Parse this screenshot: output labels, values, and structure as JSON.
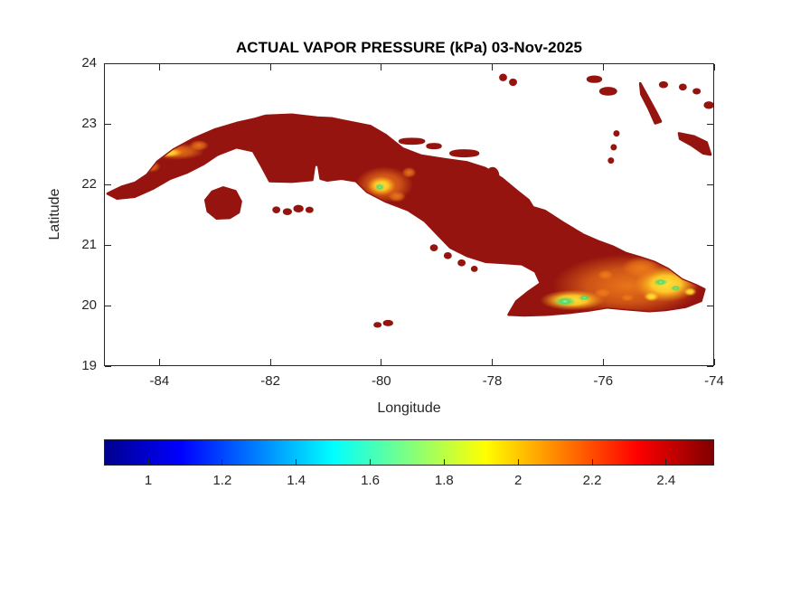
{
  "chart_data": {
    "type": "heatmap",
    "title": "ACTUAL VAPOR PRESSURE (kPa) 03-Nov-2025",
    "variable": "Actual vapor pressure",
    "unit": "kPa",
    "date": "03-Nov-2025",
    "region": "Cuba and nearby cays (Isla de la Juventud, Sabana-Camaguey archipelago, southern Bahamas fragments)",
    "xlabel": "Longitude",
    "ylabel": "Latitude",
    "xlim": [
      -85,
      -74
    ],
    "ylim": [
      19,
      24
    ],
    "grid": false,
    "legend_position": "none",
    "xticks": [
      {
        "value": -84,
        "label": "-84"
      },
      {
        "value": -82,
        "label": "-82"
      },
      {
        "value": -80,
        "label": "-80"
      },
      {
        "value": -78,
        "label": "-78"
      },
      {
        "value": -76,
        "label": "-76"
      },
      {
        "value": -74,
        "label": "-74"
      }
    ],
    "yticks": [
      {
        "value": 24,
        "label": "24"
      },
      {
        "value": 23,
        "label": "23"
      },
      {
        "value": 22,
        "label": "22"
      },
      {
        "value": 21,
        "label": "21"
      },
      {
        "value": 20,
        "label": "20"
      },
      {
        "value": 19,
        "label": "19"
      }
    ],
    "colorbar": {
      "orientation": "horizontal",
      "colormap": "jet",
      "range": [
        0.88,
        2.53
      ],
      "ticks": [
        {
          "value": 1,
          "label": "1"
        },
        {
          "value": 1.2,
          "label": "1.2"
        },
        {
          "value": 1.4,
          "label": "1.4"
        },
        {
          "value": 1.6,
          "label": "1.6"
        },
        {
          "value": 1.8,
          "label": "1.8"
        },
        {
          "value": 2,
          "label": "2"
        },
        {
          "value": 2.2,
          "label": "2.2"
        },
        {
          "value": 2.4,
          "label": "2.4"
        }
      ],
      "stops": [
        {
          "pos": 0,
          "color": "#00008f"
        },
        {
          "pos": 0.125,
          "color": "#0000ff"
        },
        {
          "pos": 0.375,
          "color": "#00ffff"
        },
        {
          "pos": 0.625,
          "color": "#ffff00"
        },
        {
          "pos": 0.875,
          "color": "#ff0000"
        },
        {
          "pos": 1,
          "color": "#800000"
        }
      ]
    },
    "colors": {
      "land_color": "#96140f",
      "axis_color": "#262626",
      "text_color": "#262626",
      "title_color": "#000000",
      "bg_color": "#ffffff",
      "hotspot_orange": "#f07d1a",
      "hotspot_yellow": "#ffd52e",
      "hotspot_green": "#46d96a"
    },
    "observations": [
      {
        "area": "most of the island",
        "value_kPa": "2.4-2.5",
        "appearance": "dark red"
      },
      {
        "area": "western highlands near (-84.2 to -83.3, 22.5)",
        "value_kPa": "2.0-2.2",
        "appearance": "thin orange-yellow streak along north coast"
      },
      {
        "area": "central highlands (Escambray) near (-80.0, 22.0)",
        "value_kPa": "1.8-2.1",
        "appearance": "yellow patch with orange fringe and small green core"
      },
      {
        "area": "Sierra Maestra south coast near (-76.6, 20.1)",
        "value_kPa": "1.6-2.0",
        "appearance": "yellow strip with green-cyan core"
      },
      {
        "area": "eastern highlands near (-75.0 to -74.4, 20.2-20.6)",
        "value_kPa": "1.7-2.2",
        "appearance": "large yellow-orange mottled region with green flecks"
      },
      {
        "area": "Isla de la Juventud and offshore cays",
        "value_kPa": "2.4-2.5",
        "appearance": "dark red"
      }
    ]
  }
}
